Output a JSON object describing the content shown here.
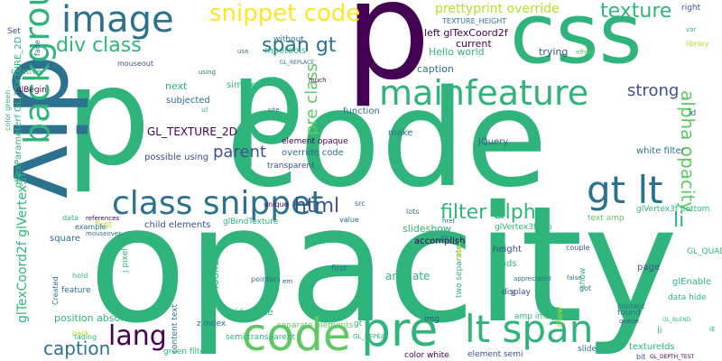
{
  "palette": {
    "dark_purple": "#440154",
    "indigo": "#3b528b",
    "teal_blue": "#2c728e",
    "teal": "#21918c",
    "green": "#2fb47c",
    "light_green": "#5ec962",
    "lime": "#b5de2b",
    "yellow": "#fde725"
  },
  "words": [
    {
      "text": "p",
      "color": "#440154"
    },
    {
      "text": "code",
      "color": "#2fb47c"
    },
    {
      "text": "opacity",
      "color": "#2fb47c"
    },
    {
      "text": "p",
      "color": "#2fb47c"
    },
    {
      "text": "p",
      "color": "#2fb47c"
    },
    {
      "text": "div",
      "color": "#2c728e"
    },
    {
      "text": "css",
      "color": "#2fb47c"
    },
    {
      "text": "image",
      "color": "#2c728e"
    },
    {
      "text": "snippet code",
      "color": "#fde725"
    },
    {
      "text": "mainfeature",
      "color": "#2fb47c"
    },
    {
      "text": "background",
      "color": "#2fb47c"
    },
    {
      "text": "class snippet",
      "color": "#2c728e"
    },
    {
      "text": "code",
      "color": "#5ec962"
    },
    {
      "text": "pre",
      "color": "#2fb47c"
    },
    {
      "text": "lt span",
      "color": "#2fb47c"
    },
    {
      "text": "gt lt",
      "color": "#2c728e"
    },
    {
      "text": "lang",
      "color": "#440154"
    },
    {
      "text": "caption",
      "color": "#2c728e"
    },
    {
      "text": "texture",
      "color": "#2fb47c"
    },
    {
      "text": "span gt",
      "color": "#2c728e"
    },
    {
      "text": "div class",
      "color": "#2fb47c"
    },
    {
      "text": "filter alpha",
      "color": "#2fb47c"
    },
    {
      "text": "html",
      "color": "#3b528b"
    },
    {
      "text": "alpha opacity",
      "color": "#5ec962"
    },
    {
      "text": "strong",
      "color": "#3b528b"
    },
    {
      "text": "pre class",
      "color": "#5ec962"
    },
    {
      "text": "parent",
      "color": "#3b528b"
    },
    {
      "text": "li",
      "color": "#2fb47c"
    },
    {
      "text": "prettyprint override",
      "color": "#b5de2b"
    },
    {
      "text": "GL_TEXTURE_2D",
      "color": "#440154"
    },
    {
      "text": "glTexCoord2f glVertex3f",
      "color": "#2fb47c"
    },
    {
      "text": "glTexParameterf GL_TEXTURE_2D",
      "color": "#2fb47c"
    },
    {
      "text": "left glTexCoord2f",
      "color": "#440154"
    },
    {
      "text": "Hello world",
      "color": "#2fb47c"
    },
    {
      "text": "current",
      "color": "#440154"
    },
    {
      "text": "caption",
      "color": "#2c728e"
    },
    {
      "text": "trying",
      "color": "#3b528b"
    },
    {
      "text": "next",
      "color": "#2fb47c"
    },
    {
      "text": "subjected",
      "color": "#2c728e"
    },
    {
      "text": "simple",
      "color": "#2fb47c"
    },
    {
      "text": "mootools",
      "color": "#2fb47c"
    },
    {
      "text": "without",
      "color": "#2c728e"
    },
    {
      "text": "override code",
      "color": "#2c728e"
    },
    {
      "text": "element opaque",
      "color": "#440154"
    },
    {
      "text": "make",
      "color": "#2c728e"
    },
    {
      "text": "function",
      "color": "#2c728e"
    },
    {
      "text": "jQuery",
      "color": "#3b528b"
    },
    {
      "text": "white filter",
      "color": "#2c728e"
    },
    {
      "text": "possible using",
      "color": "#3b528b"
    },
    {
      "text": "transparent",
      "color": "#3b528b"
    },
    {
      "text": "child elements",
      "color": "#3b528b"
    },
    {
      "text": "glBindTexture",
      "color": "#2fb47c"
    },
    {
      "text": "slideshow",
      "color": "#2fb47c"
    },
    {
      "text": "accomplish",
      "color": "#440154"
    },
    {
      "text": "glVertex3f top",
      "color": "#2fb47c"
    },
    {
      "text": "glVertex3f bottom",
      "color": "#2fb47c"
    },
    {
      "text": "text amp",
      "color": "#5ec962"
    },
    {
      "text": "height",
      "color": "#3b528b"
    },
    {
      "text": "square",
      "color": "#2c728e"
    },
    {
      "text": "first",
      "color": "#b5de2b"
    },
    {
      "text": "j pixel",
      "color": "#2fb47c"
    },
    {
      "text": "looks",
      "color": "#2fb47c"
    },
    {
      "text": "animate",
      "color": "#2fb47c"
    },
    {
      "text": "loads",
      "color": "#2fb47c"
    },
    {
      "text": "two separate",
      "color": "#2fb47c"
    },
    {
      "text": "display",
      "color": "#3b528b"
    },
    {
      "text": "page",
      "color": "#3b528b"
    },
    {
      "text": "show",
      "color": "#2fb47c"
    },
    {
      "text": "position absolute",
      "color": "#2fb47c"
    },
    {
      "text": "hide false",
      "color": "#2fb47c"
    },
    {
      "text": "separate elements",
      "color": "#5ec962"
    },
    {
      "text": "amp images",
      "color": "#2fb47c"
    },
    {
      "text": "glEnable",
      "color": "#2fb47c"
    },
    {
      "text": "z index",
      "color": "#2c728e"
    },
    {
      "text": "content text",
      "color": "#2c728e"
    },
    {
      "text": "semi transparent",
      "color": "#2fb47c"
    },
    {
      "text": "green filter",
      "color": "#2fb47c"
    },
    {
      "text": "color white",
      "color": "#440154"
    },
    {
      "text": "element semi",
      "color": "#3b528b"
    },
    {
      "text": "slide",
      "color": "#2c728e"
    },
    {
      "text": "textureIds",
      "color": "#2fb47c"
    },
    {
      "text": "found",
      "color": "#2c728e"
    },
    {
      "text": "data hide",
      "color": "#2fb47c"
    },
    {
      "text": "feature",
      "color": "#2c728e"
    },
    {
      "text": "img",
      "color": "#3b528b"
    },
    {
      "text": "GL_QUADS",
      "color": "#2fb47c"
    },
    {
      "text": "Created",
      "color": "#2c728e"
    },
    {
      "text": "fading",
      "color": "#2fb47c"
    },
    {
      "text": "first",
      "color": "#2c728e"
    },
    {
      "text": "right",
      "color": "#3b528b"
    },
    {
      "text": "glBegin",
      "color": "#440154"
    },
    {
      "text": "relative",
      "color": "#2fb47c"
    },
    {
      "text": "color green",
      "color": "#2fb47c"
    },
    {
      "text": "Set",
      "color": "#3b528b"
    },
    {
      "text": "fade",
      "color": "#2c728e"
    },
    {
      "text": "TEXTURE_HEIGHT",
      "color": "#2c728e"
    },
    {
      "text": "gt",
      "color": "#2fb47c"
    },
    {
      "text": "id",
      "color": "#2c728e"
    },
    {
      "text": "li",
      "color": "#2fb47c"
    },
    {
      "text": "j",
      "color": "#fde725"
    },
    {
      "text": "show",
      "color": "#b5de2b"
    },
    {
      "text": "data",
      "color": "#2fb47c"
    },
    {
      "text": "example",
      "color": "#2c728e"
    },
    {
      "text": "references",
      "color": "#440154"
    },
    {
      "text": "mouseover",
      "color": "#2c728e"
    },
    {
      "text": "mouseout",
      "color": "#3b528b"
    },
    {
      "text": "using",
      "color": "#2c728e"
    },
    {
      "text": "unique",
      "color": "#440154"
    },
    {
      "text": "value",
      "color": "#2c728e"
    },
    {
      "text": "src",
      "color": "#3b528b"
    },
    {
      "text": "lots",
      "color": "#2c728e"
    },
    {
      "text": "couple",
      "color": "#3b528b"
    },
    {
      "text": "bit",
      "color": "#3b528b"
    },
    {
      "text": "hold",
      "color": "#2fb47c"
    },
    {
      "text": "back",
      "color": "#b5de2b"
    },
    {
      "text": "pointers",
      "color": "#2c728e"
    },
    {
      "text": "em",
      "color": "#3b528b"
    },
    {
      "text": "appreciated",
      "color": "#2c728e"
    },
    {
      "text": "content",
      "color": "#2c728e"
    },
    {
      "text": "queue",
      "color": "#3b528b"
    },
    {
      "text": "much",
      "color": "#440154"
    },
    {
      "text": "site",
      "color": "#2c728e"
    },
    {
      "text": "use",
      "color": "#2c728e"
    },
    {
      "text": "href",
      "color": "#2c728e"
    },
    {
      "text": "go",
      "color": "#2c728e"
    },
    {
      "text": "var",
      "color": "#2fb47c"
    },
    {
      "text": "library",
      "color": "#b5de2b"
    },
    {
      "text": "got",
      "color": "#2c728e"
    },
    {
      "text": "false",
      "color": "#2c728e"
    },
    {
      "text": "effect",
      "color": "#5ec962"
    },
    {
      "text": "ul",
      "color": "#2fb47c"
    },
    {
      "text": "GL_BLEND",
      "color": "#2fb47c"
    },
    {
      "text": "GL_REPEAT",
      "color": "#2fb47c"
    },
    {
      "text": "GL_DEPTH_TEST",
      "color": "#440154"
    },
    {
      "text": "GL_REPLACE",
      "color": "#2c728e"
    },
    {
      "text": "IE",
      "color": "#2fb47c"
    },
    {
      "text": "8",
      "color": "#3b528b"
    }
  ]
}
